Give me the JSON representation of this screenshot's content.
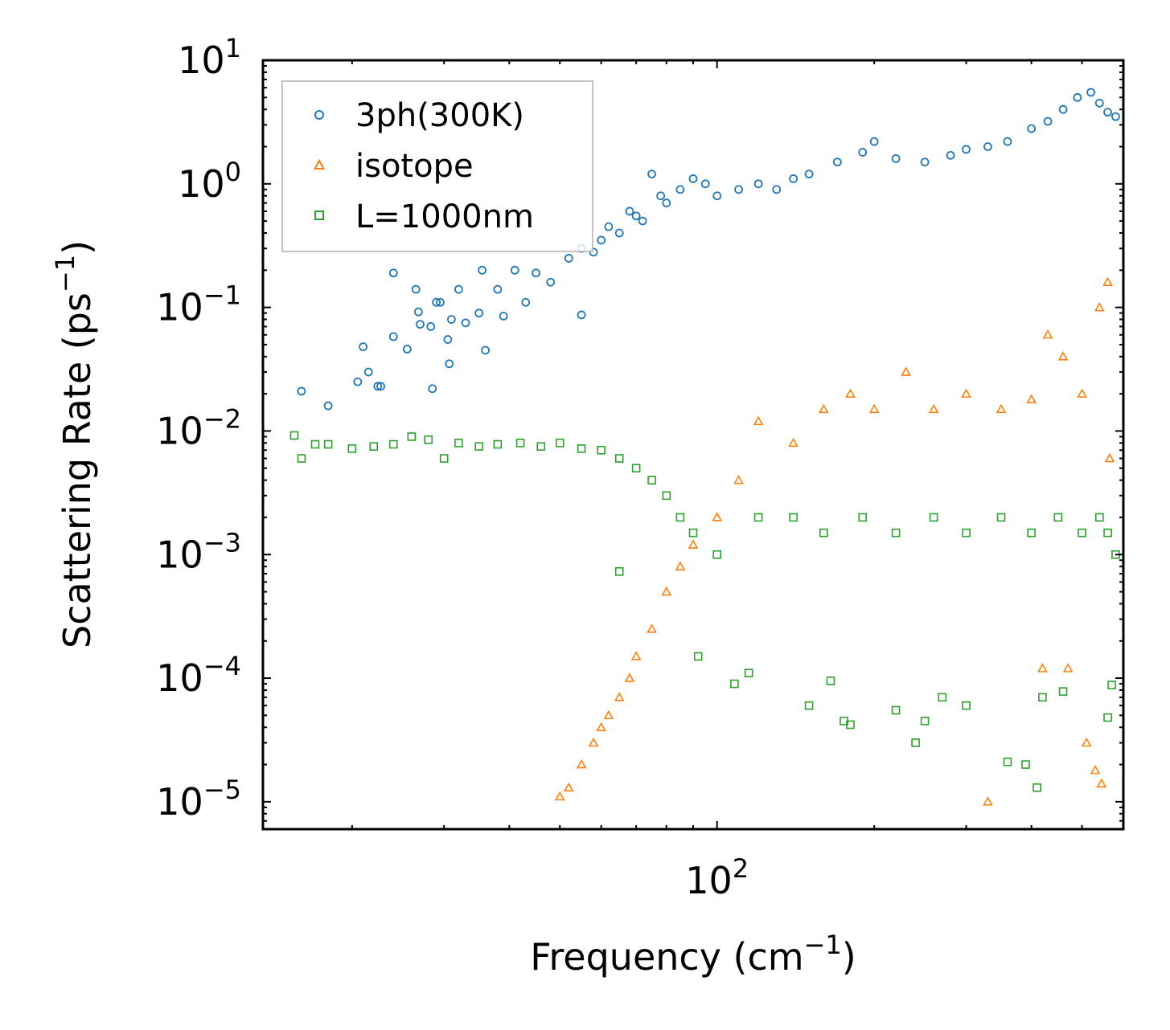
{
  "chart_data": {
    "type": "scatter",
    "title": "",
    "xlabel": {
      "base": "Frequency (cm",
      "sup": "−1",
      "tail": ")"
    },
    "ylabel": {
      "base": "Scattering Rate (ps",
      "sup": "−1",
      "tail": ")"
    },
    "xscale": "log",
    "yscale": "log",
    "xlim": [
      13.5,
      600
    ],
    "ylim": [
      6e-06,
      10
    ],
    "x_major_ticks": [
      {
        "value": 100,
        "base": "10",
        "exp": "2"
      }
    ],
    "x_minor_ticks": [
      20,
      30,
      40,
      50,
      60,
      70,
      80,
      90,
      200,
      300,
      400,
      500
    ],
    "y_major_ticks": [
      {
        "value": 10,
        "base": "10",
        "exp": "1"
      },
      {
        "value": 1,
        "base": "10",
        "exp": "0"
      },
      {
        "value": 0.1,
        "base": "10",
        "exp": "−1"
      },
      {
        "value": 0.01,
        "base": "10",
        "exp": "−2"
      },
      {
        "value": 0.001,
        "base": "10",
        "exp": "−3"
      },
      {
        "value": 0.0001,
        "base": "10",
        "exp": "−4"
      },
      {
        "value": 1e-05,
        "base": "10",
        "exp": "−5"
      }
    ],
    "legend_position": "top-left",
    "series": [
      {
        "name": "3ph(300K)",
        "marker": "circle",
        "color": "#1f77b4",
        "trend": "rate rises with frequency from ~0.02 near 16 cm^-1 to ~1 near 100 cm^-1 and ~5 near 540 cm^-1",
        "points": [
          [
            16,
            0.021
          ],
          [
            18,
            0.016
          ],
          [
            20.5,
            0.025
          ],
          [
            21,
            0.048
          ],
          [
            21.5,
            0.03
          ],
          [
            22.4,
            0.023
          ],
          [
            22.7,
            0.023
          ],
          [
            24,
            0.058
          ],
          [
            24,
            0.19
          ],
          [
            25.5,
            0.046
          ],
          [
            26.5,
            0.14
          ],
          [
            26.8,
            0.092
          ],
          [
            27,
            0.073
          ],
          [
            28.3,
            0.07
          ],
          [
            28.5,
            0.022
          ],
          [
            29,
            0.11
          ],
          [
            29.5,
            0.11
          ],
          [
            30.5,
            0.055
          ],
          [
            30.7,
            0.035
          ],
          [
            31,
            0.08
          ],
          [
            32,
            0.14
          ],
          [
            33,
            0.075
          ],
          [
            35,
            0.09
          ],
          [
            35.5,
            0.2
          ],
          [
            36,
            0.045
          ],
          [
            38,
            0.14
          ],
          [
            39,
            0.085
          ],
          [
            41,
            0.2
          ],
          [
            43,
            0.11
          ],
          [
            45,
            0.19
          ],
          [
            48,
            0.16
          ],
          [
            52,
            0.25
          ],
          [
            55,
            0.087
          ],
          [
            55,
            0.3
          ],
          [
            58,
            0.28
          ],
          [
            60,
            0.35
          ],
          [
            62,
            0.45
          ],
          [
            65,
            0.4
          ],
          [
            68,
            0.6
          ],
          [
            70,
            0.55
          ],
          [
            72,
            0.5
          ],
          [
            75,
            1.2
          ],
          [
            78,
            0.8
          ],
          [
            80,
            0.7
          ],
          [
            85,
            0.9
          ],
          [
            90,
            1.1
          ],
          [
            95,
            1.0
          ],
          [
            100,
            0.8
          ],
          [
            110,
            0.9
          ],
          [
            120,
            1.0
          ],
          [
            130,
            0.9
          ],
          [
            140,
            1.1
          ],
          [
            150,
            1.2
          ],
          [
            170,
            1.5
          ],
          [
            190,
            1.8
          ],
          [
            200,
            2.2
          ],
          [
            220,
            1.6
          ],
          [
            250,
            1.5
          ],
          [
            280,
            1.7
          ],
          [
            300,
            1.9
          ],
          [
            330,
            2.0
          ],
          [
            360,
            2.2
          ],
          [
            400,
            2.8
          ],
          [
            430,
            3.2
          ],
          [
            460,
            4.0
          ],
          [
            490,
            5.0
          ],
          [
            520,
            5.5
          ],
          [
            540,
            4.5
          ],
          [
            560,
            3.8
          ],
          [
            580,
            3.5
          ]
        ]
      },
      {
        "name": "isotope",
        "marker": "triangle",
        "color": "#ff7f0e",
        "trend": "starts ~1e-5 near 50 cm^-1, rises steeply to ~1e-3 near 90 cm^-1, then spans ~1e-3 to ~0.1 up to 580 cm^-1",
        "points": [
          [
            50,
            1.1e-05
          ],
          [
            52,
            1.3e-05
          ],
          [
            55,
            2e-05
          ],
          [
            58,
            3e-05
          ],
          [
            60,
            4e-05
          ],
          [
            62,
            5e-05
          ],
          [
            65,
            7e-05
          ],
          [
            68,
            0.0001
          ],
          [
            70,
            0.00015
          ],
          [
            75,
            0.00025
          ],
          [
            80,
            0.0005
          ],
          [
            85,
            0.0008
          ],
          [
            90,
            0.0012
          ],
          [
            100,
            0.002
          ],
          [
            110,
            0.004
          ],
          [
            120,
            0.012
          ],
          [
            140,
            0.008
          ],
          [
            160,
            0.015
          ],
          [
            180,
            0.02
          ],
          [
            200,
            0.015
          ],
          [
            230,
            0.03
          ],
          [
            260,
            0.015
          ],
          [
            300,
            0.02
          ],
          [
            350,
            0.015
          ],
          [
            400,
            0.018
          ],
          [
            430,
            0.06
          ],
          [
            460,
            0.04
          ],
          [
            500,
            0.02
          ],
          [
            540,
            0.1
          ],
          [
            560,
            0.16
          ],
          [
            565,
            0.006
          ],
          [
            330,
            1e-05
          ],
          [
            420,
            0.00012
          ],
          [
            470,
            0.00012
          ],
          [
            510,
            3e-05
          ],
          [
            530,
            1.8e-05
          ],
          [
            545,
            1.4e-05
          ]
        ]
      },
      {
        "name": "L=1000nm",
        "marker": "square",
        "color": "#2ca02c",
        "trend": "roughly flat ~8e-3 below 60 cm^-1, spreading to ~5e-4 to 1e-2 at higher frequency, with scattered points down to ~1e-5",
        "points": [
          [
            15.5,
            0.0092
          ],
          [
            16,
            0.006
          ],
          [
            17,
            0.0078
          ],
          [
            18,
            0.0078
          ],
          [
            20,
            0.0072
          ],
          [
            22,
            0.0075
          ],
          [
            24,
            0.0078
          ],
          [
            26,
            0.009
          ],
          [
            28,
            0.0085
          ],
          [
            30,
            0.006
          ],
          [
            32,
            0.008
          ],
          [
            35,
            0.0075
          ],
          [
            38,
            0.0078
          ],
          [
            42,
            0.008
          ],
          [
            46,
            0.0075
          ],
          [
            50,
            0.008
          ],
          [
            55,
            0.0072
          ],
          [
            60,
            0.007
          ],
          [
            65,
            0.006
          ],
          [
            70,
            0.005
          ],
          [
            75,
            0.004
          ],
          [
            80,
            0.003
          ],
          [
            85,
            0.002
          ],
          [
            90,
            0.0015
          ],
          [
            100,
            0.001
          ],
          [
            120,
            0.002
          ],
          [
            140,
            0.002
          ],
          [
            160,
            0.0015
          ],
          [
            190,
            0.002
          ],
          [
            220,
            0.0015
          ],
          [
            260,
            0.002
          ],
          [
            300,
            0.0015
          ],
          [
            350,
            0.002
          ],
          [
            400,
            0.0015
          ],
          [
            450,
            0.002
          ],
          [
            500,
            0.0015
          ],
          [
            540,
            0.002
          ],
          [
            560,
            0.0015
          ],
          [
            580,
            0.001
          ],
          [
            65,
            0.00073
          ],
          [
            92,
            0.00015
          ],
          [
            108,
            9e-05
          ],
          [
            115,
            0.00011
          ],
          [
            150,
            6e-05
          ],
          [
            165,
            9.5e-05
          ],
          [
            175,
            4.5e-05
          ],
          [
            180,
            4.2e-05
          ],
          [
            220,
            5.5e-05
          ],
          [
            240,
            3e-05
          ],
          [
            250,
            4.5e-05
          ],
          [
            270,
            7e-05
          ],
          [
            300,
            6e-05
          ],
          [
            360,
            2.1e-05
          ],
          [
            390,
            2e-05
          ],
          [
            410,
            1.3e-05
          ],
          [
            420,
            7e-05
          ],
          [
            460,
            7.8e-05
          ],
          [
            560,
            4.8e-05
          ],
          [
            570,
            8.8e-05
          ]
        ]
      }
    ]
  }
}
